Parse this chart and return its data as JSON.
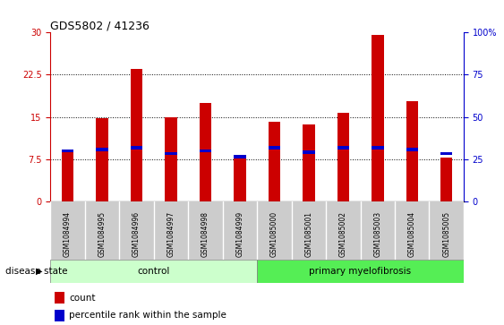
{
  "title": "GDS5802 / 41236",
  "samples": [
    "GSM1084994",
    "GSM1084995",
    "GSM1084996",
    "GSM1084997",
    "GSM1084998",
    "GSM1084999",
    "GSM1085000",
    "GSM1085001",
    "GSM1085002",
    "GSM1085003",
    "GSM1085004",
    "GSM1085005"
  ],
  "counts": [
    9.0,
    14.8,
    23.5,
    15.0,
    17.5,
    7.8,
    14.2,
    13.6,
    15.8,
    29.5,
    17.8,
    7.8
  ],
  "percentile_values": [
    9.0,
    9.2,
    9.5,
    8.5,
    9.0,
    8.0,
    9.5,
    8.8,
    9.5,
    9.5,
    9.2,
    8.5
  ],
  "control_indices": [
    0,
    1,
    2,
    3,
    4,
    5
  ],
  "myelofibrosis_indices": [
    6,
    7,
    8,
    9,
    10,
    11
  ],
  "ylim_left": [
    0,
    30
  ],
  "ylim_right": [
    0,
    100
  ],
  "yticks_left": [
    0,
    7.5,
    15,
    22.5,
    30
  ],
  "yticks_right": [
    0,
    25,
    50,
    75,
    100
  ],
  "ytick_labels_left": [
    "0",
    "7.5",
    "15",
    "22.5",
    "30"
  ],
  "ytick_labels_right": [
    "0",
    "25",
    "50",
    "75",
    "100%"
  ],
  "bar_color": "#cc0000",
  "percentile_color": "#0000cc",
  "control_bg": "#ccffcc",
  "myelofibrosis_bg": "#55ee55",
  "tick_label_bg": "#cccccc",
  "left_axis_color": "#cc0000",
  "right_axis_color": "#0000cc",
  "disease_state_label": "disease state",
  "control_label": "control",
  "myelofibrosis_label": "primary myelofibrosis",
  "legend_count": "count",
  "legend_percentile": "percentile rank within the sample",
  "bar_width": 0.35
}
